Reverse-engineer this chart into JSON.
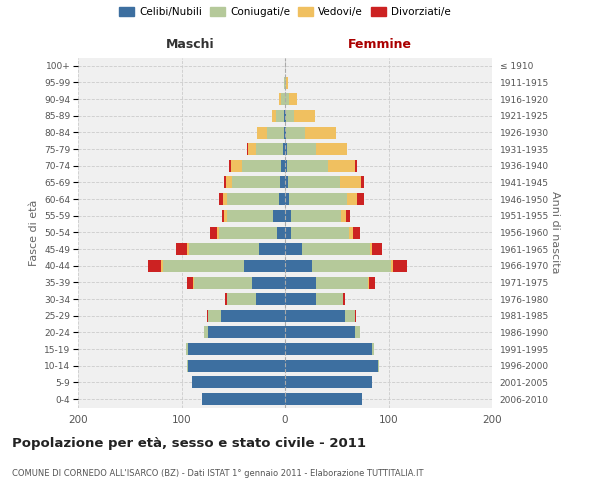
{
  "age_groups": [
    "100+",
    "95-99",
    "90-94",
    "85-89",
    "80-84",
    "75-79",
    "70-74",
    "65-69",
    "60-64",
    "55-59",
    "50-54",
    "45-49",
    "40-44",
    "35-39",
    "30-34",
    "25-29",
    "20-24",
    "15-19",
    "10-14",
    "5-9",
    "0-4"
  ],
  "birth_years": [
    "≤ 1910",
    "1911-1915",
    "1916-1920",
    "1921-1925",
    "1926-1930",
    "1931-1935",
    "1936-1940",
    "1941-1945",
    "1946-1950",
    "1951-1955",
    "1956-1960",
    "1961-1965",
    "1966-1970",
    "1971-1975",
    "1976-1980",
    "1981-1985",
    "1986-1990",
    "1991-1995",
    "1996-2000",
    "2001-2005",
    "2006-2010"
  ],
  "males_celibi": [
    0,
    0,
    0,
    1,
    1,
    2,
    4,
    5,
    6,
    12,
    8,
    25,
    40,
    32,
    28,
    62,
    74,
    94,
    94,
    90,
    80
  ],
  "males_coniugati": [
    0,
    1,
    4,
    8,
    16,
    26,
    38,
    46,
    50,
    44,
    56,
    68,
    78,
    56,
    28,
    12,
    4,
    2,
    1,
    0,
    0
  ],
  "males_vedovi": [
    0,
    0,
    2,
    4,
    10,
    8,
    10,
    6,
    4,
    3,
    2,
    2,
    2,
    1,
    0,
    0,
    0,
    0,
    0,
    0,
    0
  ],
  "males_divorziati": [
    0,
    0,
    0,
    0,
    0,
    1,
    2,
    2,
    4,
    2,
    6,
    10,
    12,
    6,
    2,
    1,
    0,
    0,
    0,
    0,
    0
  ],
  "females_nubili": [
    0,
    0,
    0,
    1,
    1,
    2,
    2,
    3,
    4,
    6,
    6,
    16,
    26,
    30,
    30,
    58,
    68,
    84,
    90,
    84,
    74
  ],
  "females_coniugate": [
    0,
    1,
    4,
    8,
    18,
    28,
    40,
    50,
    56,
    48,
    56,
    66,
    76,
    50,
    26,
    10,
    4,
    2,
    1,
    0,
    0
  ],
  "females_vedove": [
    0,
    2,
    8,
    20,
    30,
    30,
    26,
    20,
    10,
    5,
    4,
    2,
    2,
    1,
    0,
    0,
    0,
    0,
    0,
    0,
    0
  ],
  "females_divorziate": [
    0,
    0,
    0,
    0,
    0,
    0,
    2,
    3,
    6,
    4,
    6,
    10,
    14,
    6,
    2,
    1,
    0,
    0,
    0,
    0,
    0
  ],
  "color_celibi": "#3d6fa0",
  "color_coniugati": "#b5c99a",
  "color_vedovi": "#f0c060",
  "color_divorziati": "#cc2222",
  "title": "Popolazione per età, sesso e stato civile - 2011",
  "subtitle": "COMUNE DI CORNEDO ALL'ISARCO (BZ) - Dati ISTAT 1° gennaio 2011 - Elaborazione TUTTITALIA.IT",
  "label_maschi": "Maschi",
  "label_femmine": "Femmine",
  "ylabel_left": "Fasce di età",
  "ylabel_right": "Anni di nascita",
  "xlim": 200,
  "bg_color": "#f0f0f0",
  "plot_bg": "#ffffff"
}
